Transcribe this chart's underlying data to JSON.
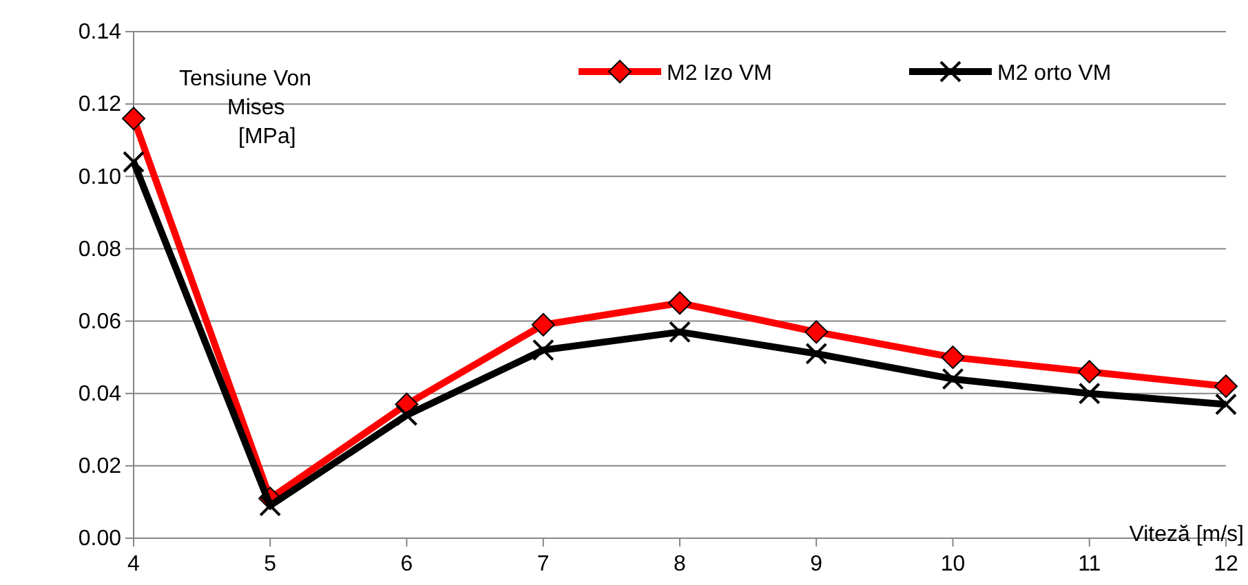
{
  "chart_data": {
    "type": "line",
    "xlabel": "Viteză [m/s]",
    "ylabel": "Tensiune Von Mises [MPa]",
    "x": [
      4,
      5,
      6,
      7,
      8,
      9,
      10,
      11,
      12
    ],
    "series": [
      {
        "name": "M2 Izo VM",
        "color": "#ff0000",
        "marker": "diamond",
        "values": [
          0.116,
          0.011,
          0.037,
          0.059,
          0.065,
          0.057,
          0.05,
          0.046,
          0.042
        ]
      },
      {
        "name": "M2 orto VM",
        "color": "#000000",
        "marker": "cross",
        "values": [
          0.104,
          0.009,
          0.034,
          0.052,
          0.057,
          0.051,
          0.044,
          0.04,
          0.037
        ]
      }
    ],
    "xlim": [
      4,
      12
    ],
    "xticks": [
      4,
      5,
      6,
      7,
      8,
      9,
      10,
      11,
      12
    ],
    "ylim": [
      0,
      0.14
    ],
    "yticks": [
      {
        "value": 0,
        "label": "0.00"
      },
      {
        "value": 0.02,
        "label": "0.02"
      },
      {
        "value": 0.04,
        "label": "0.04"
      },
      {
        "value": 0.06,
        "label": "0.06"
      },
      {
        "value": 0.08,
        "label": "0.08"
      },
      {
        "value": 0.1,
        "label": "0.10"
      },
      {
        "value": 0.12,
        "label": "0.12"
      },
      {
        "value": 0.14,
        "label": "0.14"
      }
    ],
    "grid": "y",
    "legend": "top right",
    "line_style": "solid"
  }
}
